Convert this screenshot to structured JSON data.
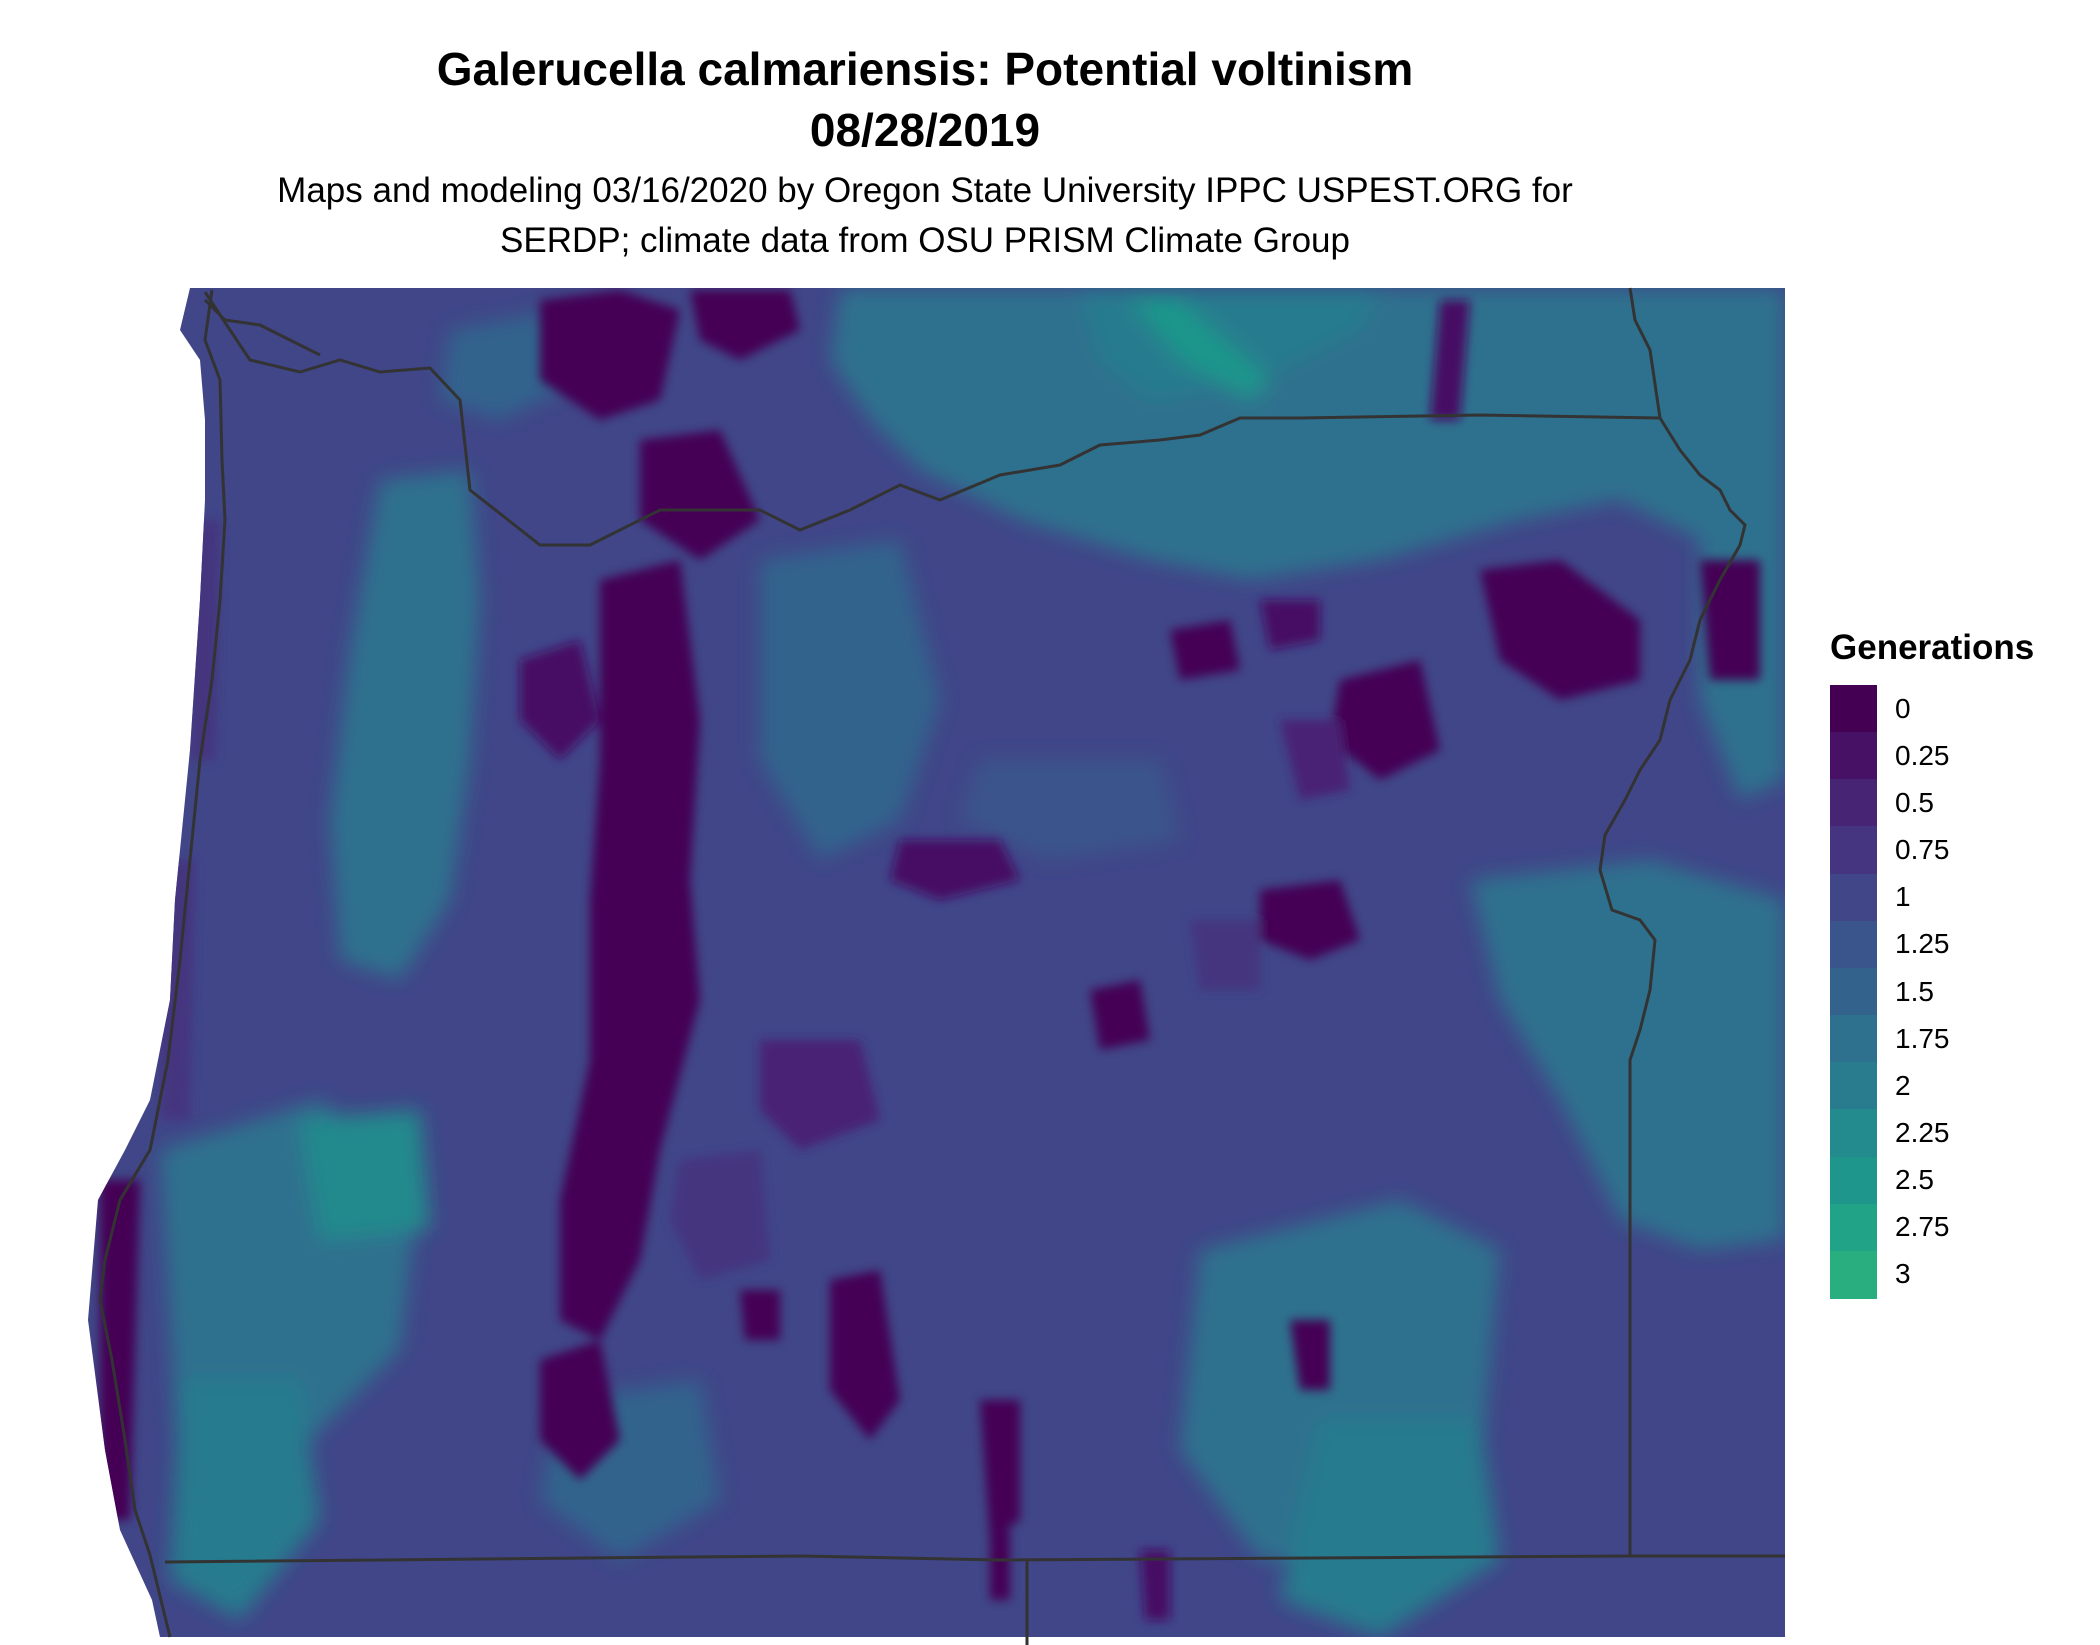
{
  "title_line1": "Galerucella calmariensis: Potential voltinism",
  "title_line2": "08/28/2019",
  "subtitle_line1": "Maps and modeling 03/16/2020 by Oregon State University IPPC USPEST.ORG for",
  "subtitle_line2": "SERDP; climate data from OSU PRISM Climate Group",
  "legend": {
    "title": "Generations",
    "items": [
      {
        "label": "0",
        "color": "#440154"
      },
      {
        "label": "0.25",
        "color": "#471165"
      },
      {
        "label": "0.5",
        "color": "#482475"
      },
      {
        "label": "0.75",
        "color": "#45347f"
      },
      {
        "label": "1",
        "color": "#404688"
      },
      {
        "label": "1.25",
        "color": "#3a548c"
      },
      {
        "label": "1.5",
        "color": "#33638d"
      },
      {
        "label": "1.75",
        "color": "#2d718e"
      },
      {
        "label": "2",
        "color": "#287c8e"
      },
      {
        "label": "2.25",
        "color": "#238a8d"
      },
      {
        "label": "2.5",
        "color": "#1f968b"
      },
      {
        "label": "2.75",
        "color": "#20a386"
      },
      {
        "label": "3",
        "color": "#29af7f"
      }
    ]
  }
}
